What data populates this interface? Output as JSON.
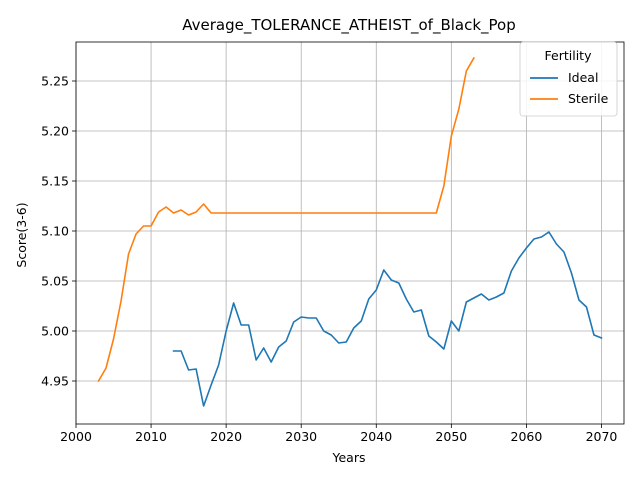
{
  "chart_data": {
    "type": "line",
    "title": "Average_TOLERANCE_ATHEIST_of_Black_Pop",
    "xlabel": "Years",
    "ylabel": "Score(3-6)",
    "xlim": [
      2000,
      2073
    ],
    "ylim": [
      4.907,
      5.289
    ],
    "xticks": [
      2000,
      2010,
      2020,
      2030,
      2040,
      2050,
      2060,
      2070
    ],
    "yticks": [
      4.95,
      5.0,
      5.05,
      5.1,
      5.15,
      5.2,
      5.25
    ],
    "ytick_labels": [
      "4.95",
      "5.00",
      "5.05",
      "5.10",
      "5.15",
      "5.20",
      "5.25"
    ],
    "grid": true,
    "legend": {
      "title": "Fertility",
      "placement": "top-right"
    },
    "series": [
      {
        "name": "Ideal",
        "color": "#1f77b4",
        "x": [
          2013,
          2014,
          2015,
          2016,
          2017,
          2018,
          2019,
          2020,
          2021,
          2022,
          2023,
          2024,
          2025,
          2026,
          2027,
          2028,
          2029,
          2030,
          2031,
          2032,
          2033,
          2034,
          2035,
          2036,
          2037,
          2038,
          2039,
          2040,
          2041,
          2042,
          2043,
          2044,
          2045,
          2046,
          2047,
          2048,
          2049,
          2050,
          2051,
          2052,
          2053,
          2054,
          2055,
          2056,
          2057,
          2058,
          2059,
          2060,
          2061,
          2062,
          2063,
          2064,
          2065,
          2066,
          2067,
          2068,
          2069,
          2070
        ],
        "y": [
          4.98,
          4.98,
          4.961,
          4.962,
          4.925,
          4.946,
          4.966,
          5.0,
          5.028,
          5.006,
          5.006,
          4.971,
          4.983,
          4.969,
          4.984,
          4.99,
          5.009,
          5.014,
          5.013,
          5.013,
          5.0,
          4.996,
          4.988,
          4.989,
          5.003,
          5.01,
          5.032,
          5.041,
          5.061,
          5.051,
          5.048,
          5.032,
          5.019,
          5.021,
          4.995,
          4.989,
          4.982,
          5.01,
          5.0,
          5.029,
          5.033,
          5.037,
          5.031,
          5.034,
          5.038,
          5.06,
          5.073,
          5.083,
          5.092,
          5.094,
          5.099,
          5.087,
          5.079,
          5.058,
          5.031,
          5.024,
          4.996,
          4.993
        ]
      },
      {
        "name": "Sterile",
        "color": "#ff7f0e",
        "x": [
          2003,
          2004,
          2005,
          2006,
          2007,
          2008,
          2009,
          2010,
          2011,
          2012,
          2013,
          2014,
          2015,
          2016,
          2017,
          2018,
          2019,
          2020,
          2025,
          2030,
          2035,
          2040,
          2045,
          2046,
          2047,
          2048,
          2049,
          2050,
          2051,
          2052,
          2053
        ],
        "y": [
          4.95,
          4.963,
          4.992,
          5.03,
          5.077,
          5.097,
          5.105,
          5.105,
          5.119,
          5.124,
          5.118,
          5.121,
          5.116,
          5.119,
          5.127,
          5.118,
          5.118,
          5.118,
          5.118,
          5.118,
          5.118,
          5.118,
          5.118,
          5.118,
          5.118,
          5.118,
          5.145,
          5.195,
          5.222,
          5.26,
          5.273
        ]
      }
    ]
  }
}
